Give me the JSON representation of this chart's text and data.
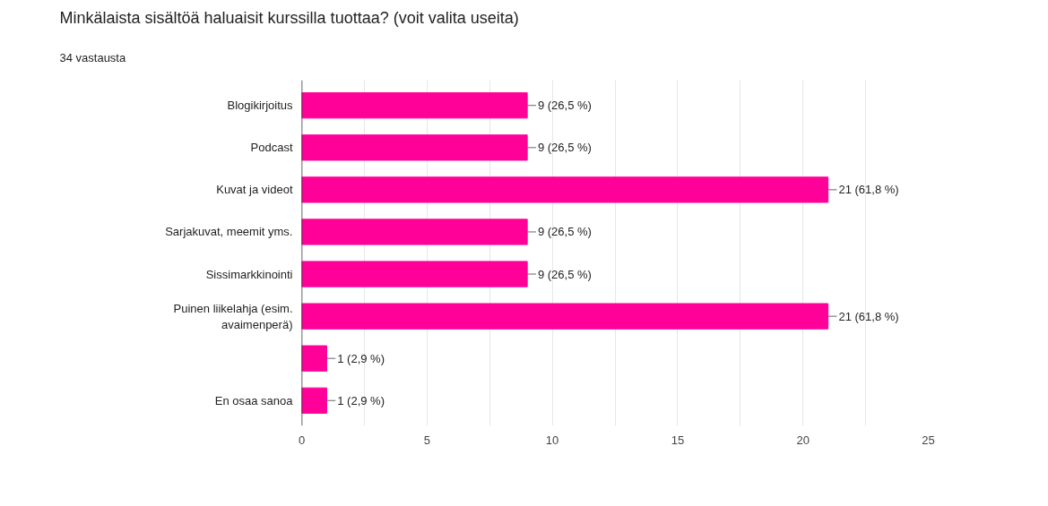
{
  "chart_data": {
    "type": "bar",
    "orientation": "horizontal",
    "title": "Minkälaista sisältöä haluaisit kurssilla tuottaa? (voit valita useita)",
    "subtitle": "34 vastausta",
    "categories": [
      "Blogikirjoitus",
      "Podcast",
      "Kuvat ja videot",
      "Sarjakuvat, meemit yms.",
      "Sissimarkkinointi",
      "Puinen liikelahja (esim. avaimenperä)",
      null,
      "En osaa sanoa"
    ],
    "values": [
      9,
      9,
      21,
      9,
      9,
      21,
      1,
      1
    ],
    "value_labels": [
      "9 (26,5 %)",
      "9 (26,5 %)",
      "21 (61,8 %)",
      "9 (26,5 %)",
      "9 (26,5 %)",
      "21 (61,8 %)",
      "1 (2,9 %)",
      "1 (2,9 %)"
    ],
    "color": "#ff0099",
    "xlim": [
      0,
      25
    ],
    "xticks": [
      0,
      {
        "value": 2.5,
        "label": null
      },
      5,
      {
        "value": 7.5,
        "label": null
      },
      10,
      {
        "value": 12.5,
        "label": null
      },
      15,
      {
        "value": 17.5,
        "label": null
      },
      20,
      {
        "value": 22.5,
        "label": null
      },
      25
    ],
    "grid": "x"
  }
}
